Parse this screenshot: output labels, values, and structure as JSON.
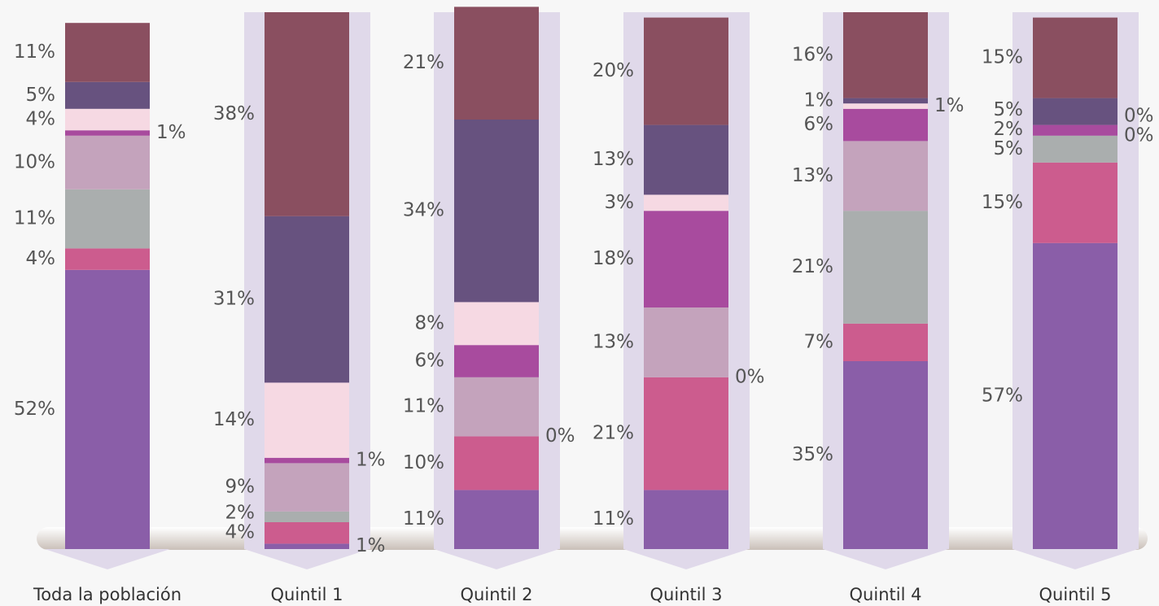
{
  "chart_data": {
    "type": "bar",
    "stacked": true,
    "categories": [
      "Toda la población",
      "Quintil 1",
      "Quintil 2",
      "Quintil 3",
      "Quintil 4",
      "Quintil 5"
    ],
    "ylim": [
      0,
      100
    ],
    "series": [
      {
        "color": "#8a5ea8",
        "values": [
          52,
          1,
          11,
          11,
          35,
          57
        ],
        "value_labels": [
          "52%",
          "1%",
          "11%",
          "11%",
          "35%",
          "57%"
        ]
      },
      {
        "color": "#cc5c8e",
        "values": [
          4,
          4,
          10,
          21,
          7,
          15
        ],
        "value_labels": [
          "4%",
          "4%",
          "10%",
          "21%",
          "7%",
          "15%"
        ]
      },
      {
        "color": "#aaaeae",
        "values": [
          11,
          2,
          0,
          0,
          21,
          5
        ],
        "value_labels": [
          "11%",
          "2%",
          "0%",
          "0%",
          "21%",
          "5%"
        ]
      },
      {
        "color": "#c4a3bc",
        "values": [
          10,
          9,
          11,
          13,
          13,
          0
        ],
        "value_labels": [
          "10%",
          "9%",
          "11%",
          "13%",
          "13%",
          "0%"
        ]
      },
      {
        "color": "#a84b9e",
        "values": [
          1,
          1,
          6,
          18,
          6,
          2
        ],
        "value_labels": [
          "1%",
          "1%",
          "6%",
          "18%",
          "6%",
          "2%"
        ]
      },
      {
        "color": "#f6d9e3",
        "values": [
          4,
          14,
          8,
          3,
          1,
          0
        ],
        "value_labels": [
          "4%",
          "14%",
          "8%",
          "3%",
          "1%",
          "0%"
        ]
      },
      {
        "color": "#67527f",
        "values": [
          5,
          31,
          34,
          13,
          1,
          5
        ],
        "value_labels": [
          "5%",
          "31%",
          "34%",
          "13%",
          "1%",
          "5%"
        ]
      },
      {
        "color": "#8a4f60",
        "values": [
          11,
          38,
          21,
          20,
          16,
          15
        ],
        "value_labels": [
          "11%",
          "38%",
          "21%",
          "20%",
          "16%",
          "15%"
        ]
      }
    ]
  }
}
